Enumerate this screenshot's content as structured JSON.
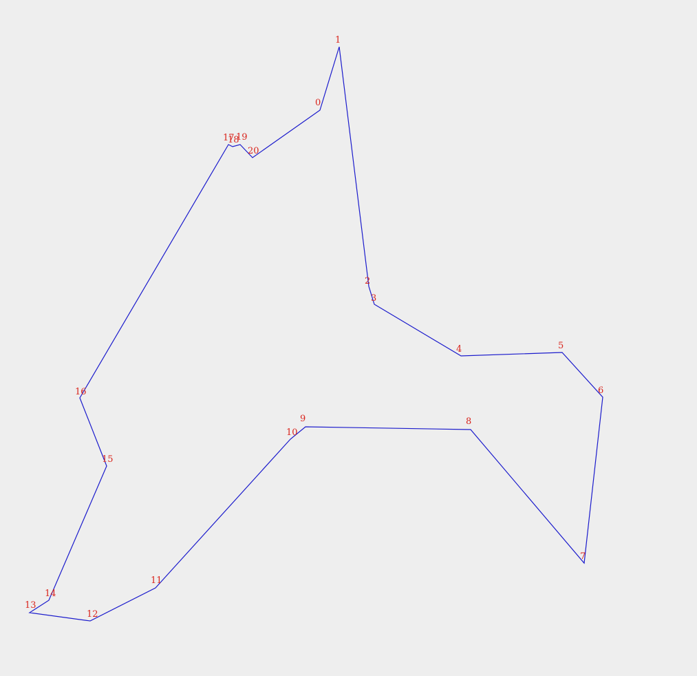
{
  "diagram": {
    "stroke_color": "#1a1acc",
    "label_color": "#d9241c",
    "background_color": "#eeeeee",
    "vertices": [
      {
        "label": "0"
      },
      {
        "label": "1"
      },
      {
        "label": "2"
      },
      {
        "label": "3"
      },
      {
        "label": "4"
      },
      {
        "label": "5"
      },
      {
        "label": "6"
      },
      {
        "label": "7"
      },
      {
        "label": "8"
      },
      {
        "label": "9"
      },
      {
        "label": "10"
      },
      {
        "label": "11"
      },
      {
        "label": "12"
      },
      {
        "label": "13"
      },
      {
        "label": "14"
      },
      {
        "label": "15"
      },
      {
        "label": "16"
      },
      {
        "label": "17"
      },
      {
        "label": "18"
      },
      {
        "label": "19"
      },
      {
        "label": "20"
      }
    ]
  }
}
